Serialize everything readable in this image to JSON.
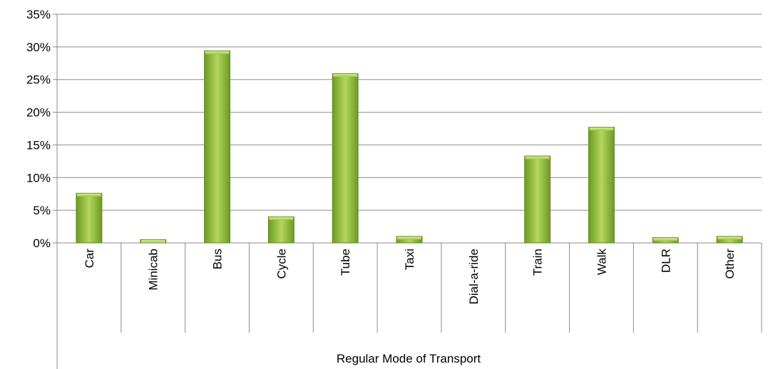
{
  "chart_data": {
    "type": "bar",
    "categories": [
      "Car",
      "Minicab",
      "Bus",
      "Cycle",
      "Tube",
      "Taxi",
      "Dial-a-ride",
      "Train",
      "Walk",
      "DLR",
      "Other"
    ],
    "series": [
      {
        "values": [
          7.6,
          0.5,
          29.4,
          4.0,
          25.9,
          1.0,
          0.0,
          13.3,
          17.7,
          0.8,
          1.0
        ]
      }
    ],
    "xlabel": "Regular Mode of Transport",
    "ylabel": "",
    "ylim": [
      0,
      35
    ],
    "yticks": [
      "0%",
      "5%",
      "10%",
      "15%",
      "20%",
      "25%",
      "30%",
      "35%"
    ],
    "grid": true,
    "legend": "none",
    "colors": {
      "bar": "#8db83a",
      "bar_light": "#c6e27a",
      "bar_dark": "#5f8a1e",
      "grid": "#8c8c8c"
    }
  }
}
